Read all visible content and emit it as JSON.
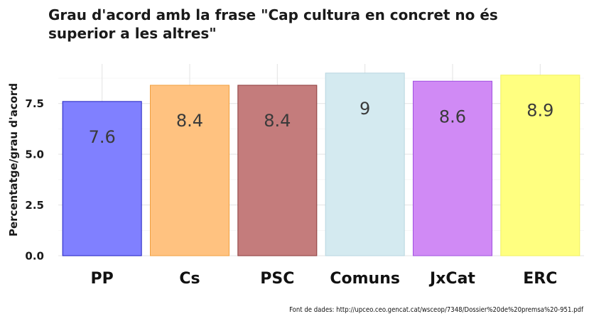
{
  "chart_data": {
    "type": "bar",
    "title": "Grau d'acord amb la frase \"Cap cultura en concret no és superior a les altres\"",
    "ylabel": "Percentatge/grau d'acord",
    "xlabel": "",
    "categories": [
      "PP",
      "Cs",
      "PSC",
      "Comuns",
      "JxCat",
      "ERC"
    ],
    "values": [
      7.6,
      8.4,
      8.4,
      9.0,
      8.6,
      8.9
    ],
    "value_labels": [
      "7.6",
      "8.4",
      "8.4",
      "9",
      "8.6",
      "8.9"
    ],
    "bar_colors": [
      "#8080ff",
      "#ffc280",
      "#c47c7c",
      "#d4eaf0",
      "#d08af5",
      "#ffff80"
    ],
    "bar_edge_colors": [
      "#2020c0",
      "#f0a040",
      "#8b3a3a",
      "#b8d6e0",
      "#a050e0",
      "#f0f060"
    ],
    "yticks": [
      "0.0",
      "2.5",
      "5.0",
      "7.5"
    ],
    "ytick_values": [
      0,
      2.5,
      5,
      7.5
    ],
    "ylim": [
      0,
      9.45
    ],
    "grid": true,
    "legend": "none"
  },
  "caption": "Font de dades: http://upceo.ceo.gencat.cat/wsceop/7348/Dossier%20de%20premsa%20-951.pdf"
}
